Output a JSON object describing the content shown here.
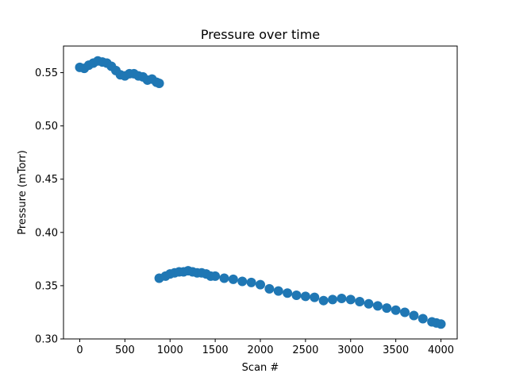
{
  "chart_data": {
    "type": "scatter",
    "title": "Pressure over time",
    "xlabel": "Scan #",
    "ylabel": "Pressure (mTorr)",
    "xlim": [
      -180,
      4180
    ],
    "ylim": [
      0.3,
      0.575
    ],
    "xticks": [
      0,
      500,
      1000,
      1500,
      2000,
      2500,
      3000,
      3500,
      4000
    ],
    "yticks": [
      0.3,
      0.35,
      0.4,
      0.45,
      0.5,
      0.55
    ],
    "xtick_labels": [
      "0",
      "500",
      "1000",
      "1500",
      "2000",
      "2500",
      "3000",
      "3500",
      "4000"
    ],
    "ytick_labels": [
      "0.30",
      "0.35",
      "0.40",
      "0.45",
      "0.50",
      "0.55"
    ],
    "grid": false,
    "marker_color": "#1f77b4",
    "series": [
      {
        "x": [
          0,
          50,
          100,
          150,
          200,
          250,
          300,
          350,
          400,
          450,
          500,
          550,
          600,
          650,
          700,
          750,
          800,
          850,
          880
        ],
        "y": [
          0.555,
          0.554,
          0.557,
          0.559,
          0.561,
          0.56,
          0.559,
          0.556,
          0.552,
          0.548,
          0.547,
          0.549,
          0.549,
          0.547,
          0.546,
          0.543,
          0.544,
          0.541,
          0.54
        ]
      },
      {
        "x": [
          880,
          950,
          1000,
          1050,
          1100,
          1150,
          1200,
          1250,
          1300,
          1350,
          1400,
          1450,
          1500,
          1600,
          1700,
          1800,
          1900,
          2000,
          2100,
          2200,
          2300,
          2400,
          2500,
          2600,
          2700,
          2800,
          2900,
          3000,
          3100,
          3200,
          3300,
          3400,
          3500,
          3600,
          3700,
          3800,
          3900,
          3950,
          4000
        ],
        "y": [
          0.357,
          0.359,
          0.361,
          0.362,
          0.363,
          0.363,
          0.364,
          0.363,
          0.362,
          0.362,
          0.361,
          0.359,
          0.359,
          0.357,
          0.356,
          0.354,
          0.353,
          0.351,
          0.347,
          0.345,
          0.343,
          0.341,
          0.34,
          0.339,
          0.336,
          0.337,
          0.338,
          0.337,
          0.335,
          0.333,
          0.331,
          0.329,
          0.327,
          0.325,
          0.322,
          0.319,
          0.316,
          0.315,
          0.314
        ]
      }
    ]
  }
}
